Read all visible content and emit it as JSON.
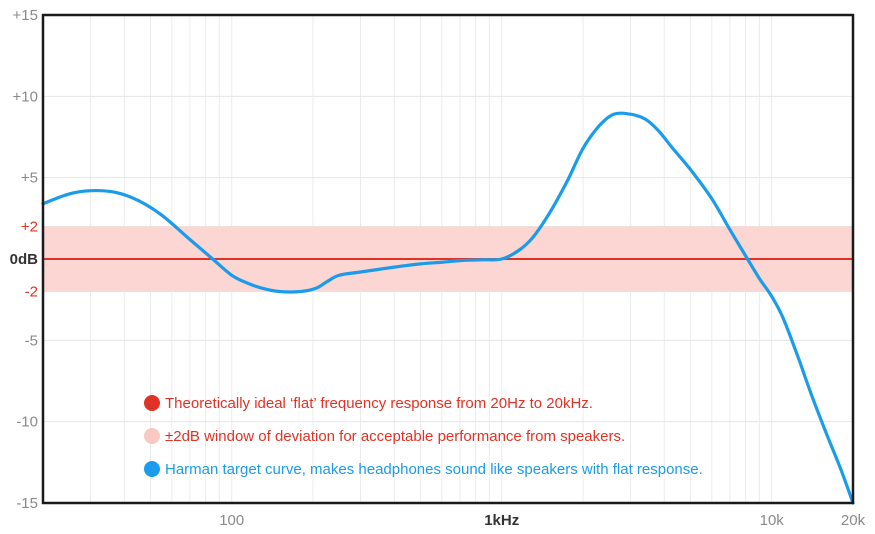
{
  "chart_data": {
    "type": "line",
    "title": "",
    "xlabel": "",
    "ylabel": "",
    "x_scale": "log",
    "xlim": [
      20,
      20000
    ],
    "ylim": [
      -15,
      15
    ],
    "grid": true,
    "y_ticks": [
      {
        "value": 15,
        "label": "+15",
        "style": "gray"
      },
      {
        "value": 10,
        "label": "+10",
        "style": "gray"
      },
      {
        "value": 5,
        "label": "+5",
        "style": "gray"
      },
      {
        "value": 2,
        "label": "+2",
        "style": "red"
      },
      {
        "value": 0,
        "label": "0dB",
        "style": "bold"
      },
      {
        "value": -2,
        "label": "-2",
        "style": "red"
      },
      {
        "value": -5,
        "label": "-5",
        "style": "gray"
      },
      {
        "value": -10,
        "label": "-10",
        "style": "gray"
      },
      {
        "value": -15,
        "label": "-15",
        "style": "gray"
      }
    ],
    "x_ticks": [
      {
        "value": 100,
        "label": "100",
        "style": "gray"
      },
      {
        "value": 1000,
        "label": "1kHz",
        "style": "bold"
      },
      {
        "value": 10000,
        "label": "10k",
        "style": "gray"
      },
      {
        "value": 20000,
        "label": "20k",
        "style": "gray"
      }
    ],
    "band": {
      "y_min": -2,
      "y_max": 2,
      "color": "#fbd6d2"
    },
    "series": [
      {
        "name": "Theoretically ideal ‘flat’ frequency response from 20Hz to 20kHz.",
        "color": "#e03326",
        "x": [
          20,
          20000
        ],
        "y": [
          0,
          0
        ]
      },
      {
        "name": "Harman target curve, makes headphones sound like speakers with flat response.",
        "color": "#1b9cea",
        "x": [
          20,
          25,
          30,
          37,
          45,
          55,
          70,
          85,
          100,
          115,
          130,
          150,
          180,
          205,
          225,
          250,
          300,
          400,
          500,
          600,
          700,
          850,
          1000,
          1150,
          1300,
          1500,
          1750,
          2000,
          2300,
          2600,
          3000,
          3400,
          3800,
          4300,
          5000,
          6000,
          7000,
          8000,
          9000,
          10000,
          11000,
          12500,
          14000,
          16000,
          18000,
          20000
        ],
        "y": [
          3.4,
          4.0,
          4.2,
          4.1,
          3.6,
          2.7,
          1.2,
          0.0,
          -1.0,
          -1.5,
          -1.8,
          -2.0,
          -2.0,
          -1.8,
          -1.4,
          -1.0,
          -0.8,
          -0.5,
          -0.3,
          -0.2,
          -0.1,
          -0.05,
          0.0,
          0.5,
          1.3,
          2.8,
          4.8,
          6.8,
          8.2,
          8.9,
          8.9,
          8.6,
          7.9,
          6.8,
          5.5,
          3.7,
          1.8,
          0.2,
          -1.2,
          -2.3,
          -3.6,
          -6.0,
          -8.3,
          -10.8,
          -12.9,
          -15.0
        ]
      }
    ],
    "legend": {
      "placement": "bottom-left",
      "entries": [
        {
          "label": "Theoretically ideal ‘flat’ frequency response from 20Hz to 20kHz.",
          "dot_color": "#e03326",
          "text_color": "#e03326"
        },
        {
          "label": "±2dB window of deviation for acceptable performance from speakers.",
          "dot_color": "#f8c9c3",
          "text_color": "#e03326"
        },
        {
          "label": "Harman target curve, makes headphones sound like speakers with flat response.",
          "dot_color": "#1b9cea",
          "text_color": "#1b9cea"
        }
      ]
    }
  }
}
